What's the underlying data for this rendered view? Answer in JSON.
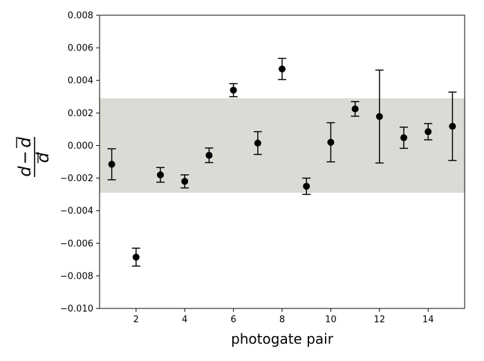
{
  "chart_data": {
    "type": "scatter",
    "xlabel": "photogate pair",
    "ylabel": "(d − d̄)/d̄",
    "ylabel_parts": {
      "numerator_left": "d",
      "operator": "−",
      "numerator_right": "d",
      "denominator": "d"
    },
    "xlim": [
      0.5,
      15.5
    ],
    "ylim": [
      -0.01,
      0.008
    ],
    "xticks": [
      2,
      4,
      6,
      8,
      10,
      12,
      14
    ],
    "xtick_labels": [
      "2",
      "4",
      "6",
      "8",
      "10",
      "12",
      "14"
    ],
    "yticks": [
      -0.01,
      -0.008,
      -0.006,
      -0.004,
      -0.002,
      0.0,
      0.002,
      0.004,
      0.006,
      0.008
    ],
    "ytick_labels": [
      "−0.010",
      "−0.008",
      "−0.006",
      "−0.004",
      "−0.002",
      "0.000",
      "0.002",
      "0.004",
      "0.006",
      "0.008"
    ],
    "band": {
      "y0": -0.0029,
      "y1": 0.0029,
      "color": "#d9dbd5"
    },
    "marker_color": "#000000",
    "points": [
      {
        "x": 1,
        "y": -0.00115,
        "err_low": 0.00095,
        "err_high": 0.00095
      },
      {
        "x": 2,
        "y": -0.00685,
        "err_low": 0.00055,
        "err_high": 0.00055
      },
      {
        "x": 3,
        "y": -0.0018,
        "err_low": 0.00045,
        "err_high": 0.00045
      },
      {
        "x": 4,
        "y": -0.0022,
        "err_low": 0.0004,
        "err_high": 0.0004
      },
      {
        "x": 5,
        "y": -0.0006,
        "err_low": 0.00045,
        "err_high": 0.00045
      },
      {
        "x": 6,
        "y": 0.0034,
        "err_low": 0.0004,
        "err_high": 0.0004
      },
      {
        "x": 7,
        "y": 0.00015,
        "err_low": 0.0007,
        "err_high": 0.0007
      },
      {
        "x": 8,
        "y": 0.0047,
        "err_low": 0.00065,
        "err_high": 0.00065
      },
      {
        "x": 9,
        "y": -0.0025,
        "err_low": 0.0005,
        "err_high": 0.0005
      },
      {
        "x": 10,
        "y": 0.0002,
        "err_low": 0.0012,
        "err_high": 0.0012
      },
      {
        "x": 11,
        "y": 0.00225,
        "err_low": 0.00045,
        "err_high": 0.00045
      },
      {
        "x": 12,
        "y": 0.00178,
        "err_low": 0.00285,
        "err_high": 0.00285
      },
      {
        "x": 13,
        "y": 0.00048,
        "err_low": 0.00065,
        "err_high": 0.00065
      },
      {
        "x": 14,
        "y": 0.00085,
        "err_low": 0.0005,
        "err_high": 0.0005
      },
      {
        "x": 15,
        "y": 0.00118,
        "err_low": 0.0021,
        "err_high": 0.0021
      }
    ]
  }
}
